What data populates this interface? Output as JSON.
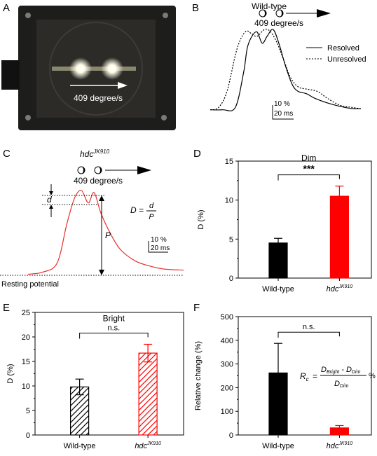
{
  "panels": {
    "A": {
      "letter": "A",
      "photo_label": "409 degree/s",
      "colors": {
        "frame": "#1d1d1b",
        "surface": "#2a2a28",
        "light": "#fffde8"
      }
    },
    "B": {
      "letter": "B",
      "header": "Wild-type",
      "speed": "409 degree/s",
      "legend": [
        "Resolved",
        "Unresolved"
      ],
      "scale_pct": "10 %",
      "scale_ms": "20 ms"
    },
    "C": {
      "letter": "C",
      "genotype": "hdc",
      "genotype_sup": "JK910",
      "speed": "409 degree/s",
      "d_label": "d",
      "p_label": "P",
      "formula_lhs": "D =",
      "formula_num": "d",
      "formula_den": "P",
      "scale_pct": "10 %",
      "scale_ms": "20 ms",
      "baseline_label": "Resting potential",
      "trace_color": "#e8302a"
    },
    "F_formula": {
      "lhs": "R",
      "lhs_sub": "c",
      "equals": "=",
      "num_a": "D",
      "num_a_sub": "Bright",
      "minus": "-",
      "num_b": "D",
      "num_b_sub": "Dim",
      "den": "D",
      "den_sub": "Dim",
      "unit": "%"
    }
  },
  "chart_data": [
    {
      "panel": "D",
      "type": "bar",
      "title": "Dim",
      "categories": [
        "Wild-type",
        "hdc"
      ],
      "category_sup": [
        "",
        "JK910"
      ],
      "values": [
        4.5,
        10.5
      ],
      "errors": [
        0.6,
        1.3
      ],
      "ylabel": "D (%)",
      "ylim": [
        0,
        15
      ],
      "yticks": [
        0,
        5,
        10,
        15
      ],
      "significance": "***",
      "colors": [
        "#000000",
        "#ff0000"
      ],
      "hatched": false,
      "letter": "D"
    },
    {
      "panel": "E",
      "type": "bar",
      "title": "Bright",
      "categories": [
        "Wild-type",
        "hdc"
      ],
      "category_sup": [
        "",
        "JK910"
      ],
      "values": [
        9.8,
        16.7
      ],
      "errors": [
        1.6,
        1.8
      ],
      "ylabel": "D (%)",
      "ylim": [
        0,
        25
      ],
      "yticks": [
        0,
        5,
        10,
        15,
        20,
        25
      ],
      "significance": "n.s.",
      "colors": [
        "#000000",
        "#ff0000"
      ],
      "hatched": true,
      "letter": "E"
    },
    {
      "panel": "F",
      "type": "bar",
      "title": "",
      "categories": [
        "Wild-type",
        "hdc"
      ],
      "category_sup": [
        "",
        "JK910"
      ],
      "values": [
        262,
        30
      ],
      "errors": [
        125,
        10
      ],
      "ylabel": "Relative change (%)",
      "ylim": [
        0,
        500
      ],
      "yticks": [
        0,
        100,
        200,
        300,
        400,
        500
      ],
      "significance": "n.s.",
      "colors": [
        "#000000",
        "#ff0000"
      ],
      "hatched": false,
      "letter": "F"
    },
    {
      "panel": "B",
      "type": "line",
      "series": [
        {
          "name": "Resolved",
          "x": [
            0,
            15,
            30,
            40,
            45,
            55,
            62,
            68,
            75,
            82,
            90,
            98,
            105,
            115,
            125,
            140,
            155,
            170,
            180
          ],
          "y": [
            2,
            2,
            4,
            35,
            58,
            70,
            60,
            66,
            72,
            60,
            40,
            24,
            18,
            16,
            12,
            8,
            5,
            3,
            3
          ]
        },
        {
          "name": "Unresolved",
          "x": [
            0,
            10,
            20,
            32,
            42,
            50,
            56,
            65,
            72,
            80,
            88,
            96,
            105,
            115,
            128,
            140,
            155,
            170,
            180
          ],
          "y": [
            2,
            4,
            18,
            55,
            70,
            68,
            66,
            72,
            70,
            60,
            45,
            30,
            22,
            20,
            18,
            12,
            6,
            4,
            3
          ]
        }
      ]
    },
    {
      "panel": "C",
      "type": "line",
      "series": [
        {
          "name": "hdc",
          "x": [
            0,
            15,
            30,
            40,
            48,
            55,
            62,
            68,
            75,
            85,
            95,
            110,
            125,
            140,
            160
          ],
          "y": [
            1,
            3,
            12,
            50,
            75,
            82,
            70,
            80,
            60,
            40,
            25,
            14,
            9,
            6,
            5
          ]
        }
      ]
    }
  ]
}
